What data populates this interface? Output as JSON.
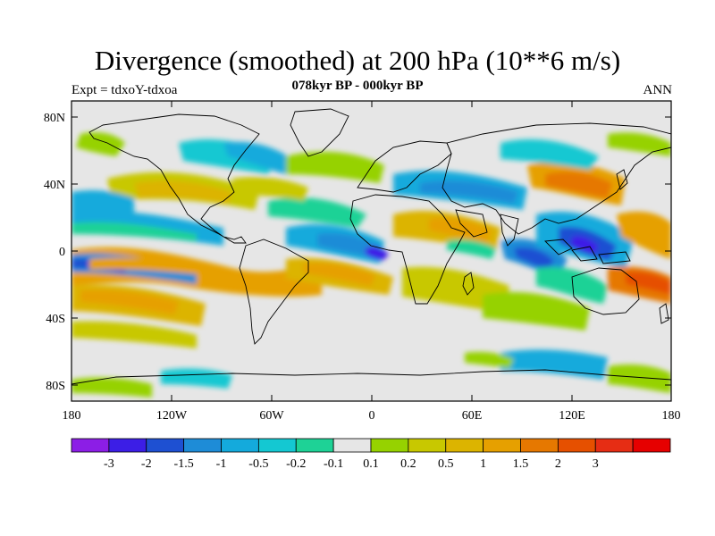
{
  "title": "Divergence (smoothed) at 200 hPa (10**6 m/s)",
  "subtitle": "078kyr BP - 000kyr BP",
  "left_label": "Expt = tdxoY-tdxoa",
  "right_label": "ANN",
  "lat_ticks": [
    "80N",
    "40N",
    "0",
    "40S",
    "80S"
  ],
  "lon_ticks": [
    "180",
    "120W",
    "60W",
    "0",
    "60E",
    "120E",
    "180"
  ],
  "colorbar": {
    "colors": [
      "#8c1ee6",
      "#3c1ee6",
      "#1e50d2",
      "#1e8cd7",
      "#14aadc",
      "#14c8d2",
      "#1ed296",
      "#e6e6e6",
      "#96d200",
      "#c8c800",
      "#dcb400",
      "#e6a000",
      "#e67800",
      "#e65000",
      "#e62d14",
      "#e60000"
    ],
    "labels": [
      "-3",
      "-2",
      "-1.5",
      "-1",
      "-0.5",
      "-0.2",
      "-0.1",
      "0.1",
      "0.2",
      "0.5",
      "1",
      "1.5",
      "2",
      "3"
    ]
  }
}
